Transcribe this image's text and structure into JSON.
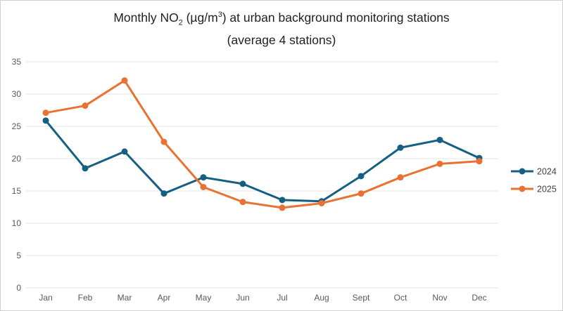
{
  "title": {
    "part1": "Monthly NO",
    "sub": "2",
    "part2": " (µg/m",
    "sup": "3",
    "part3": ") at urban background monitoring stations",
    "line2": "(average 4 stations)"
  },
  "colors": {
    "series_2024": "#156082",
    "series_2025": "#E97132",
    "gridline": "#E6E6E6",
    "tick_label": "#595959",
    "legend_label": "#404040",
    "title_text": "#1F1F1F",
    "border": "#D0D0D0",
    "background": "#FFFFFF"
  },
  "chart_data": {
    "type": "line",
    "title": "Monthly NO2 (µg/m3) at urban background monitoring stations (average 4 stations)",
    "categories": [
      "Jan",
      "Feb",
      "Mar",
      "Apr",
      "May",
      "Jun",
      "Jul",
      "Aug",
      "Sept",
      "Oct",
      "Nov",
      "Dec"
    ],
    "series": [
      {
        "name": "2024",
        "color": "#156082",
        "values": [
          25.9,
          18.5,
          21.1,
          14.6,
          17.1,
          16.1,
          13.6,
          13.4,
          17.3,
          21.7,
          22.9,
          20.1
        ]
      },
      {
        "name": "2025",
        "color": "#E97132",
        "values": [
          27.1,
          28.2,
          32.1,
          22.6,
          15.6,
          13.3,
          12.4,
          13.1,
          14.6,
          17.1,
          19.2,
          19.6
        ]
      }
    ],
    "xlabel": "",
    "ylabel": "",
    "ylim": [
      0,
      35
    ],
    "yticks": [
      0,
      5,
      10,
      15,
      20,
      25,
      30,
      35
    ],
    "grid": true,
    "legend_position": "right",
    "marker": "circle"
  }
}
